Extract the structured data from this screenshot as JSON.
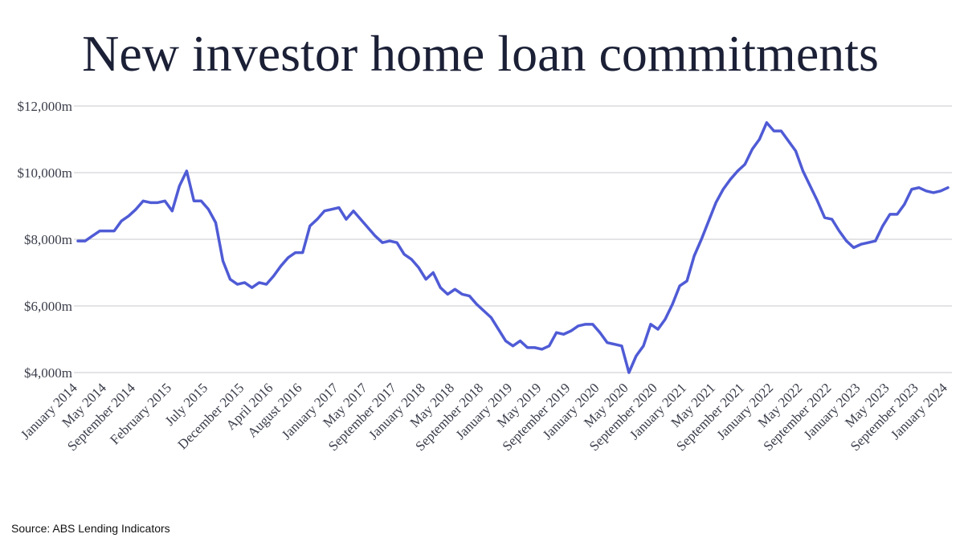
{
  "chart_data": {
    "type": "line",
    "title": "New investor home loan commitments",
    "source": "Source: ABS Lending Indicators",
    "categories": [
      "January 2014",
      null,
      null,
      null,
      "May 2014",
      null,
      null,
      null,
      "September 2014",
      null,
      null,
      null,
      null,
      "February 2015",
      null,
      null,
      null,
      null,
      "July 2015",
      null,
      null,
      null,
      null,
      "December 2015",
      null,
      null,
      null,
      "April 2016",
      null,
      null,
      null,
      "August 2016",
      null,
      null,
      null,
      null,
      "January 2017",
      null,
      null,
      null,
      "May 2017",
      null,
      null,
      null,
      "September 2017",
      null,
      null,
      null,
      "January 2018",
      null,
      null,
      null,
      "May 2018",
      null,
      null,
      null,
      "September 2018",
      null,
      null,
      null,
      "January 2019",
      null,
      null,
      null,
      "May 2019",
      null,
      null,
      null,
      "September 2019",
      null,
      null,
      null,
      "January 2020",
      null,
      null,
      null,
      "May 2020",
      null,
      null,
      null,
      "September 2020",
      null,
      null,
      null,
      "January 2021",
      null,
      null,
      null,
      "May 2021",
      null,
      null,
      null,
      "September 2021",
      null,
      null,
      null,
      "January 2022",
      null,
      null,
      null,
      "May 2022",
      null,
      null,
      null,
      "September 2022",
      null,
      null,
      null,
      "January 2023",
      null,
      null,
      null,
      "May 2023",
      null,
      null,
      null,
      "September 2023",
      null,
      null,
      null,
      "January 2024"
    ],
    "series": [
      {
        "color": "#4f5bd5",
        "values": [
          7950,
          7950,
          8100,
          8250,
          8250,
          8250,
          8550,
          8700,
          8900,
          9150,
          9100,
          9100,
          9150,
          8850,
          9600,
          10050,
          9150,
          9150,
          8900,
          8500,
          7350,
          6800,
          6650,
          6700,
          6550,
          6700,
          6650,
          6900,
          7200,
          7450,
          7600,
          7600,
          8400,
          8600,
          8850,
          8900,
          8950,
          8600,
          8850,
          8600,
          8350,
          8100,
          7900,
          7950,
          7900,
          7550,
          7400,
          7150,
          6800,
          7000,
          6550,
          6350,
          6500,
          6350,
          6300,
          6050,
          5850,
          5650,
          5300,
          4950,
          4800,
          4950,
          4750,
          4750,
          4700,
          4800,
          5200,
          5150,
          5250,
          5400,
          5450,
          5450,
          5200,
          4900,
          4850,
          4800,
          4000,
          4500,
          4800,
          5450,
          5300,
          5600,
          6050,
          6600,
          6750,
          7500,
          8000,
          8550,
          9100,
          9500,
          9800,
          10050,
          10250,
          10700,
          11000,
          11500,
          11250,
          11250,
          10950,
          10650,
          10050,
          9600,
          9150,
          8650,
          8600,
          8250,
          7950,
          7750,
          7850,
          7900,
          7950,
          8400,
          8750,
          8750,
          9050,
          9500,
          9550,
          9450,
          9400,
          9450,
          9550
        ]
      }
    ],
    "ylim": [
      4000,
      12000
    ],
    "yticks": [
      {
        "value": 4000,
        "label": "$4,000m"
      },
      {
        "value": 6000,
        "label": "$6,000m"
      },
      {
        "value": 8000,
        "label": "$8,000m"
      },
      {
        "value": 10000,
        "label": "$10,000m"
      },
      {
        "value": 12000,
        "label": "$12,000m"
      }
    ],
    "grid": true
  }
}
